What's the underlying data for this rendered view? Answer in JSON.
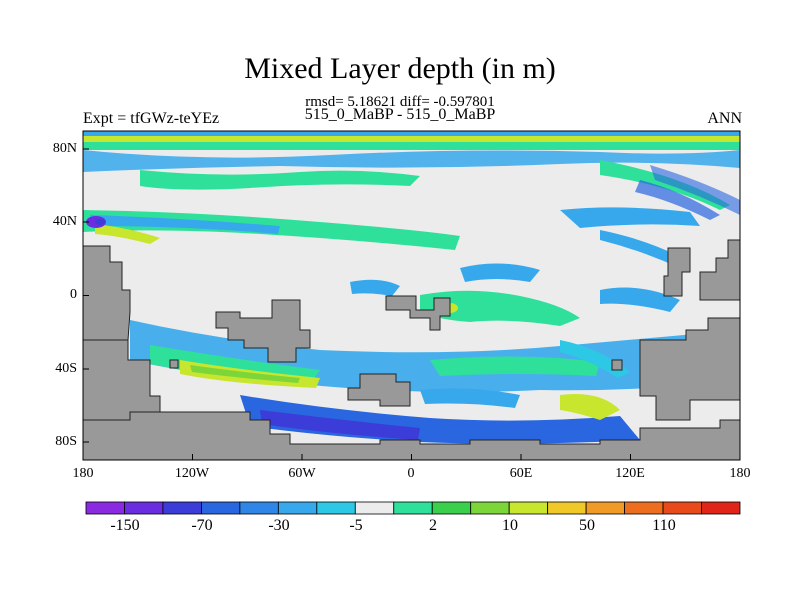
{
  "title": "Mixed Layer depth (in m)",
  "subtitle_stats": "rmsd= 5.18621 diff= -0.597801",
  "subtitle_cases": "515_0_MaBP - 515_0_MaBP",
  "left_string": "Expt = tfGWz-teYEz",
  "right_string": "ANN",
  "chart_data": {
    "type": "heatmap",
    "title": "Mixed Layer depth (in m)",
    "map_projection": "cylindrical-equidistant",
    "x_ticks": [
      "180",
      "120W",
      "60W",
      "0",
      "60E",
      "120E",
      "180"
    ],
    "y_ticks": [
      "80N",
      "40N",
      "0",
      "40S",
      "80S"
    ],
    "lon_range": [
      -180,
      180
    ],
    "lat_range": [
      -90,
      90
    ],
    "colorbar_labels": [
      "-150",
      "-70",
      "-30",
      "-5",
      "2",
      "10",
      "50",
      "110"
    ],
    "colorbar_colors": [
      "#8a2be2",
      "#6a2ee0",
      "#3c3cd8",
      "#2a66e0",
      "#2f86e6",
      "#37a8ec",
      "#2dc8e6",
      "#ececec",
      "#2fe09a",
      "#3ad04c",
      "#7cd63a",
      "#c8e62e",
      "#f0c828",
      "#f09a28",
      "#ee6e20",
      "#e84a1c",
      "#e0241a"
    ],
    "land_color": "#999999",
    "ocean_base_color": "#ececec"
  }
}
